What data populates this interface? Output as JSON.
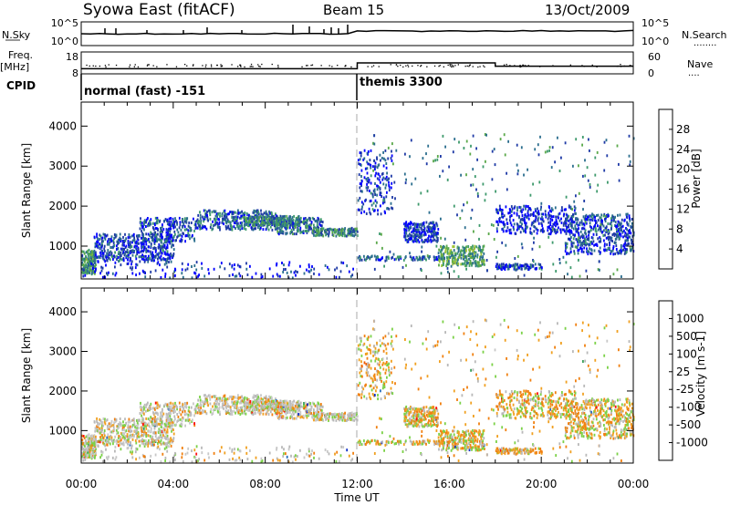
{
  "header": {
    "station": "Syowa East (fitACF)",
    "beam": "Beam 15",
    "date": "13/Oct/2009"
  },
  "left_labels": {
    "nsky": "N.Sky",
    "freq": "Freq.",
    "freq_unit": "[MHz]",
    "cpid": "CPID"
  },
  "right_labels": {
    "nsearch": "N.Search",
    "nsearch_dots": "........",
    "nave": "Nave",
    "nave_dots": "...."
  },
  "cpid_segments": [
    {
      "label": "normal (fast) -151",
      "start_hour": 0
    },
    {
      "label": "themis 3300",
      "start_hour": 12
    }
  ],
  "chart_data": [
    {
      "type": "line",
      "name": "noise",
      "y_ticks_left": [
        "10^5",
        "10^0"
      ],
      "y_ticks_right": [
        "10^5",
        "10^0"
      ],
      "xlim": [
        0,
        24
      ]
    },
    {
      "type": "line",
      "name": "frequency / nave",
      "left_ticks": [
        "18",
        "8"
      ],
      "right_ticks": [
        "60",
        "0"
      ],
      "freq_ylim": [
        8,
        18
      ],
      "nave_ylim": [
        0,
        60
      ],
      "nave_steps": [
        {
          "start": 0,
          "end": 12,
          "value": 14
        },
        {
          "start": 12,
          "end": 18,
          "value": 30
        },
        {
          "start": 18,
          "end": 24,
          "value": 21
        }
      ],
      "freq_mean": 12
    },
    {
      "type": "heatmap",
      "name": "power",
      "ylabel": "Slant Range [km]",
      "y_ticks": [
        "1000",
        "2000",
        "3000",
        "4000"
      ],
      "ylim": [
        180,
        4600
      ],
      "xlim": [
        0,
        24
      ],
      "colorbar": {
        "label": "Power [dB]",
        "ticks": [
          "28",
          "24",
          "20",
          "16",
          "12",
          "8",
          "4"
        ],
        "colors": [
          "#0000ff",
          "#1f3aa6",
          "#2b6e8e",
          "#3e9a6c",
          "#5aa84a",
          "#9ec43a",
          "#f5c400",
          "#f59a00",
          "#ee6200",
          "#ff0000"
        ]
      }
    },
    {
      "type": "heatmap",
      "name": "velocity",
      "ylabel": "Slant Range [km]",
      "y_ticks": [
        "1000",
        "2000",
        "3000",
        "4000"
      ],
      "ylim": [
        180,
        4600
      ],
      "xlim": [
        0,
        24
      ],
      "xlabel": "Time UT",
      "x_ticks": [
        "00:00",
        "04:00",
        "08:00",
        "12:00",
        "16:00",
        "20:00",
        "00:00"
      ],
      "colorbar": {
        "label": "Velocity [m s-1]",
        "ticks": [
          "1000",
          "500",
          "100",
          "25",
          "-25",
          "-100",
          "-500",
          "-1000"
        ],
        "colors": [
          "#1030c8",
          "#2b70c0",
          "#3aa05a",
          "#7bd147",
          "#b8b8b8",
          "#c8c8c8",
          "#f0a020",
          "#f08010",
          "#ee5a00",
          "#ff1010"
        ]
      }
    }
  ],
  "scatter_regions": [
    {
      "t0": 0.0,
      "t1": 0.6,
      "r0": 300,
      "r1": 900,
      "density": 0.6,
      "level": 0.35
    },
    {
      "t0": 0.5,
      "t1": 4.0,
      "r0": 600,
      "r1": 1300,
      "density": 0.3,
      "level": 0.15
    },
    {
      "t0": 2.5,
      "t1": 5.0,
      "r0": 1100,
      "r1": 1700,
      "density": 0.25,
      "level": 0.18
    },
    {
      "t0": 5.0,
      "t1": 8.5,
      "r0": 1400,
      "r1": 1900,
      "density": 0.3,
      "level": 0.2
    },
    {
      "t0": 7.0,
      "t1": 9.5,
      "r0": 1500,
      "r1": 1750,
      "density": 0.45,
      "level": 0.3
    },
    {
      "t0": 8.5,
      "t1": 10.5,
      "r0": 1300,
      "r1": 1700,
      "density": 0.4,
      "level": 0.25
    },
    {
      "t0": 10.0,
      "t1": 12.0,
      "r0": 1250,
      "r1": 1450,
      "density": 0.55,
      "level": 0.3
    },
    {
      "t0": 0.0,
      "t1": 12.0,
      "r0": 200,
      "r1": 600,
      "density": 0.06,
      "level": 0.12
    },
    {
      "t0": 12.0,
      "t1": 13.5,
      "r0": 1800,
      "r1": 3400,
      "density": 0.12,
      "level": 0.12
    },
    {
      "t0": 12.0,
      "t1": 16.0,
      "r0": 650,
      "r1": 750,
      "density": 0.4,
      "level": 0.2
    },
    {
      "t0": 14.0,
      "t1": 15.5,
      "r0": 1100,
      "r1": 1600,
      "density": 0.4,
      "level": 0.12
    },
    {
      "t0": 15.5,
      "t1": 17.5,
      "r0": 500,
      "r1": 1000,
      "density": 0.4,
      "level": 0.4
    },
    {
      "t0": 18.0,
      "t1": 20.0,
      "r0": 400,
      "r1": 550,
      "density": 0.5,
      "level": 0.15
    },
    {
      "t0": 18.0,
      "t1": 21.5,
      "r0": 1300,
      "r1": 2000,
      "density": 0.2,
      "level": 0.1
    },
    {
      "t0": 21.0,
      "t1": 24.0,
      "r0": 800,
      "r1": 1800,
      "density": 0.25,
      "level": 0.15
    },
    {
      "t0": 12.5,
      "t1": 24.0,
      "r0": 200,
      "r1": 3800,
      "density": 0.012,
      "level": 0.3
    }
  ]
}
